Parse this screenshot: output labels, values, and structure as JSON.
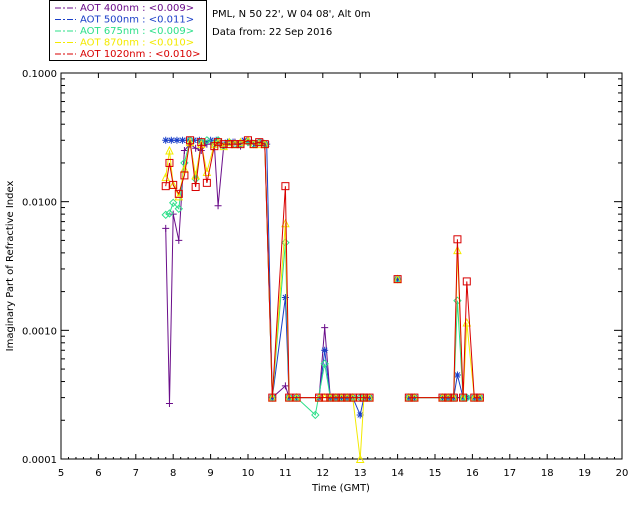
{
  "chart_data": {
    "type": "line",
    "title": "",
    "xlabel": "Time (GMT)",
    "ylabel": "Imaginary Part of Refractive Index",
    "xlim": [
      5,
      20
    ],
    "ylim": [
      0.0001,
      0.1
    ],
    "y_scale": "log",
    "x_ticks": [
      5,
      6,
      7,
      8,
      9,
      10,
      11,
      12,
      13,
      14,
      15,
      16,
      17,
      18,
      19,
      20
    ],
    "y_ticks": [
      {
        "value": 0.0001,
        "label": "0.0001"
      },
      {
        "value": 0.001,
        "label": "0.0010"
      },
      {
        "value": 0.01,
        "label": "0.0100"
      },
      {
        "value": 0.1,
        "label": "0.1000"
      }
    ],
    "grid": false,
    "legend_position": "top-left outside",
    "info_lines": [
      "PML, N 50 22', W 04 08', Alt 0m",
      "Data from: 22 Sep 2016"
    ],
    "series": [
      {
        "name": "AOT  400nm : ",
        "value_label": "<0.009>",
        "color": "#6a0d8a",
        "value_color": "#6a0d8a",
        "marker": "plus",
        "points": [
          [
            7.8,
            0.0062
          ],
          [
            7.9,
            0.00027
          ],
          [
            8.0,
            0.008
          ],
          [
            8.15,
            0.005
          ],
          [
            8.3,
            0.025
          ],
          [
            8.45,
            0.028
          ],
          [
            8.6,
            0.026
          ],
          [
            8.75,
            0.025
          ],
          [
            8.9,
            0.028
          ],
          [
            9.1,
            0.028
          ],
          [
            9.2,
            0.0093
          ],
          [
            9.35,
            0.027
          ],
          [
            9.5,
            0.029
          ],
          [
            9.65,
            0.029
          ],
          [
            9.8,
            0.027
          ],
          [
            10.0,
            0.029
          ],
          [
            10.15,
            0.028
          ],
          [
            10.3,
            0.029
          ],
          [
            10.45,
            0.027
          ],
          [
            10.65,
            0.0003
          ],
          [
            11.0,
            0.00037
          ],
          [
            11.1,
            0.0003
          ],
          [
            11.3,
            0.0003
          ],
          [
            11.9,
            0.0003
          ],
          [
            12.05,
            0.00105
          ],
          [
            12.2,
            0.0003
          ],
          [
            12.35,
            0.0003
          ],
          [
            12.5,
            0.0003
          ],
          [
            12.65,
            0.0003
          ],
          [
            12.8,
            0.0003
          ],
          [
            13.0,
            0.0003
          ],
          [
            13.1,
            0.0003
          ],
          [
            13.25,
            0.0003
          ]
        ]
      },
      {
        "name": "AOT  500nm : ",
        "value_label": "<0.011>",
        "color": "#1a3fc8",
        "value_color": "#1a3fc8",
        "marker": "asterisk",
        "points": [
          [
            7.8,
            0.03
          ],
          [
            7.95,
            0.03
          ],
          [
            8.1,
            0.03
          ],
          [
            8.25,
            0.03
          ],
          [
            8.4,
            0.03
          ],
          [
            8.55,
            0.03
          ],
          [
            8.7,
            0.03
          ],
          [
            8.85,
            0.029
          ],
          [
            9.0,
            0.03
          ],
          [
            9.15,
            0.03
          ],
          [
            9.3,
            0.028
          ],
          [
            9.45,
            0.029
          ],
          [
            9.6,
            0.029
          ],
          [
            9.75,
            0.028
          ],
          [
            9.9,
            0.03
          ],
          [
            10.05,
            0.029
          ],
          [
            10.2,
            0.028
          ],
          [
            10.35,
            0.029
          ],
          [
            10.5,
            0.028
          ],
          [
            10.65,
            0.0003
          ],
          [
            11.0,
            0.0018
          ],
          [
            11.1,
            0.0003
          ],
          [
            11.3,
            0.0003
          ],
          [
            11.9,
            0.0003
          ],
          [
            12.05,
            0.0007
          ],
          [
            12.2,
            0.0003
          ],
          [
            12.35,
            0.0003
          ],
          [
            12.5,
            0.0003
          ],
          [
            12.65,
            0.0003
          ],
          [
            12.8,
            0.0003
          ],
          [
            13.0,
            0.00022
          ],
          [
            13.1,
            0.0003
          ],
          [
            13.25,
            0.0003
          ]
        ]
      },
      {
        "name": "AOT  675nm : ",
        "value_label": "<0.009>",
        "color": "#2ee08a",
        "value_color": "#2ee08a",
        "marker": "diamond",
        "points": [
          [
            7.8,
            0.0079
          ],
          [
            7.9,
            0.0081
          ],
          [
            8.0,
            0.0098
          ],
          [
            8.15,
            0.0088
          ],
          [
            8.3,
            0.02
          ],
          [
            8.45,
            0.03
          ],
          [
            8.6,
            0.015
          ],
          [
            8.75,
            0.029
          ],
          [
            8.9,
            0.03
          ],
          [
            9.1,
            0.028
          ],
          [
            9.2,
            0.03
          ],
          [
            9.35,
            0.027
          ],
          [
            9.5,
            0.029
          ],
          [
            9.65,
            0.028
          ],
          [
            9.8,
            0.028
          ],
          [
            10.0,
            0.029
          ],
          [
            10.15,
            0.028
          ],
          [
            10.3,
            0.029
          ],
          [
            10.45,
            0.028
          ],
          [
            10.65,
            0.0003
          ],
          [
            11.0,
            0.0048
          ],
          [
            11.1,
            0.0003
          ],
          [
            11.3,
            0.0003
          ],
          [
            11.8,
            0.00022
          ],
          [
            12.05,
            0.00055
          ],
          [
            12.2,
            0.0003
          ],
          [
            12.35,
            0.0003
          ],
          [
            12.5,
            0.0003
          ],
          [
            12.65,
            0.0003
          ],
          [
            12.8,
            0.0003
          ],
          [
            13.0,
            0.0003
          ],
          [
            13.1,
            0.0003
          ],
          [
            13.25,
            0.0003
          ]
        ]
      },
      {
        "name": "AOT  870nm : ",
        "value_label": "<0.010>",
        "color": "#f3ea00",
        "value_color": "#f3ea00",
        "marker": "triangle",
        "points": [
          [
            7.8,
            0.0155
          ],
          [
            7.9,
            0.025
          ],
          [
            8.0,
            0.0135
          ],
          [
            8.15,
            0.011
          ],
          [
            8.3,
            0.018
          ],
          [
            8.45,
            0.029
          ],
          [
            8.6,
            0.016
          ],
          [
            8.75,
            0.028
          ],
          [
            8.9,
            0.017
          ],
          [
            9.1,
            0.028
          ],
          [
            9.2,
            0.029
          ],
          [
            9.35,
            0.027
          ],
          [
            9.5,
            0.029
          ],
          [
            9.65,
            0.028
          ],
          [
            9.8,
            0.029
          ],
          [
            10.0,
            0.03
          ],
          [
            10.15,
            0.028
          ],
          [
            10.3,
            0.028
          ],
          [
            10.45,
            0.028
          ],
          [
            10.65,
            0.0003
          ],
          [
            11.0,
            0.0068
          ],
          [
            11.1,
            0.0003
          ],
          [
            11.3,
            0.0003
          ],
          [
            11.9,
            0.0003
          ],
          [
            12.05,
            0.0003
          ],
          [
            12.2,
            0.0003
          ],
          [
            12.35,
            0.0003
          ],
          [
            12.5,
            0.0003
          ],
          [
            12.65,
            0.0003
          ],
          [
            12.8,
            0.0003
          ],
          [
            13.0,
            0.0001
          ],
          [
            13.1,
            0.0003
          ],
          [
            13.25,
            0.0003
          ]
        ]
      },
      {
        "name": "AOT 1020nm : ",
        "value_label": "<0.010>",
        "color": "#d80000",
        "value_color": "#d80000",
        "marker": "square",
        "points": [
          [
            7.8,
            0.0132
          ],
          [
            7.9,
            0.02
          ],
          [
            8.0,
            0.0135
          ],
          [
            8.15,
            0.0115
          ],
          [
            8.3,
            0.016
          ],
          [
            8.45,
            0.03
          ],
          [
            8.6,
            0.013
          ],
          [
            8.75,
            0.029
          ],
          [
            8.9,
            0.014
          ],
          [
            9.1,
            0.027
          ],
          [
            9.2,
            0.029
          ],
          [
            9.35,
            0.028
          ],
          [
            9.5,
            0.028
          ],
          [
            9.65,
            0.028
          ],
          [
            9.8,
            0.028
          ],
          [
            10.0,
            0.03
          ],
          [
            10.15,
            0.028
          ],
          [
            10.3,
            0.029
          ],
          [
            10.45,
            0.028
          ],
          [
            10.65,
            0.0003
          ],
          [
            11.0,
            0.0132
          ],
          [
            11.1,
            0.0003
          ],
          [
            11.3,
            0.0003
          ],
          [
            11.9,
            0.0003
          ],
          [
            12.05,
            0.0003
          ],
          [
            12.2,
            0.0003
          ],
          [
            12.35,
            0.0003
          ],
          [
            12.5,
            0.0003
          ],
          [
            12.65,
            0.0003
          ],
          [
            12.8,
            0.0003
          ],
          [
            13.0,
            0.0003
          ],
          [
            13.1,
            0.0003
          ],
          [
            13.25,
            0.0003
          ]
        ]
      }
    ],
    "later_points": {
      "400": [
        [
          14.3,
          0.0003
        ],
        [
          14.45,
          0.0003
        ],
        [
          15.2,
          0.0003
        ],
        [
          15.35,
          0.0003
        ],
        [
          15.5,
          0.0003
        ],
        [
          15.6,
          0.0003
        ],
        [
          15.75,
          0.0003
        ],
        [
          15.85,
          0.0003
        ],
        [
          16.05,
          0.0003
        ],
        [
          16.2,
          0.0003
        ]
      ],
      "500": [
        [
          14.3,
          0.0003
        ],
        [
          14.45,
          0.0003
        ],
        [
          15.2,
          0.0003
        ],
        [
          15.35,
          0.0003
        ],
        [
          15.5,
          0.0003
        ],
        [
          15.6,
          0.00045
        ],
        [
          15.75,
          0.0003
        ],
        [
          15.85,
          0.0003
        ],
        [
          16.05,
          0.0003
        ],
        [
          16.2,
          0.0003
        ]
      ],
      "675": [
        [
          14.3,
          0.0003
        ],
        [
          14.45,
          0.0003
        ],
        [
          15.2,
          0.0003
        ],
        [
          15.35,
          0.0003
        ],
        [
          15.5,
          0.0003
        ],
        [
          15.6,
          0.0017
        ],
        [
          15.75,
          0.0003
        ],
        [
          15.85,
          0.0003
        ],
        [
          16.05,
          0.0003
        ],
        [
          16.2,
          0.0003
        ]
      ],
      "870": [
        [
          14.3,
          0.0003
        ],
        [
          14.45,
          0.0003
        ],
        [
          15.2,
          0.0003
        ],
        [
          15.35,
          0.0003
        ],
        [
          15.5,
          0.0003
        ],
        [
          15.6,
          0.0042
        ],
        [
          15.75,
          0.0003
        ],
        [
          15.85,
          0.00115
        ],
        [
          16.05,
          0.0003
        ],
        [
          16.2,
          0.0003
        ]
      ],
      "1020": [
        [
          14.3,
          0.0003
        ],
        [
          14.45,
          0.0003
        ],
        [
          15.2,
          0.0003
        ],
        [
          15.35,
          0.0003
        ],
        [
          15.5,
          0.0003
        ],
        [
          15.6,
          0.0051
        ],
        [
          15.75,
          0.0003
        ],
        [
          15.85,
          0.0024
        ],
        [
          16.05,
          0.0003
        ],
        [
          16.2,
          0.0003
        ]
      ]
    },
    "isolated_points": [
      [
        14.0,
        0.0025
      ]
    ]
  }
}
